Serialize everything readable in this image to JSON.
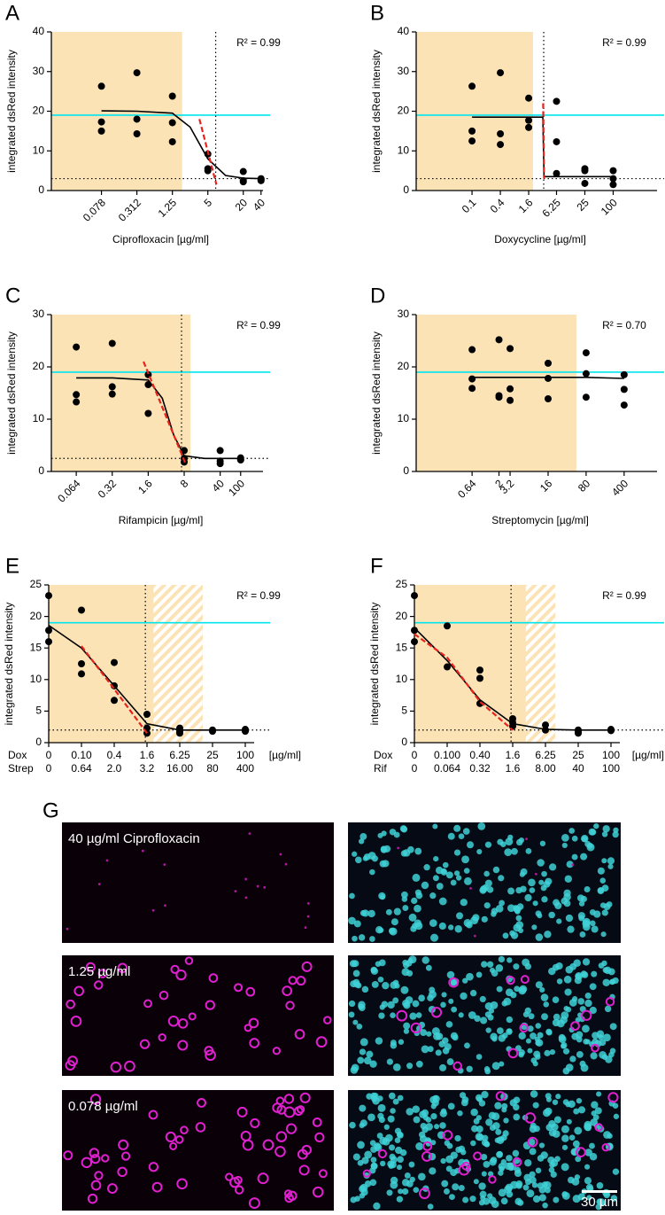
{
  "chart_data": [
    {
      "panel": "A",
      "type": "scatter",
      "annotation": "R² = 0.99",
      "ylabel": "integrated dsRed intensity",
      "xlabel": "Ciprofloxacin [µg/ml]",
      "xscale": "log",
      "xlim": [
        0.011,
        57
      ],
      "ylim": [
        0,
        40
      ],
      "yticks": [
        0,
        10,
        20,
        30,
        40
      ],
      "xticks": [
        0.078,
        0.312,
        1.25,
        5,
        20,
        40
      ],
      "shade_to": 1.83,
      "shade_color": "#fbe3b6",
      "vline": 6.8,
      "hlines": [
        {
          "y": 19,
          "color": "#00e5ee",
          "style": "solid"
        },
        {
          "y": 3,
          "color": "#000000",
          "style": "dotted"
        }
      ],
      "series": [
        {
          "style": "points",
          "color": "#000000",
          "x": [
            0.078,
            0.078,
            0.078,
            0.312,
            0.312,
            0.312,
            1.25,
            1.25,
            1.25,
            5,
            5,
            5,
            20,
            20,
            20,
            40,
            40,
            40
          ],
          "values": [
            26.3,
            17.3,
            15,
            29.7,
            18,
            14.3,
            23.8,
            17.1,
            12.3,
            9.2,
            5.5,
            5,
            4.8,
            2.5,
            2.2,
            3,
            2.8,
            2.5
          ]
        },
        {
          "style": "solid",
          "color": "#000000",
          "x": [
            0.078,
            0.312,
            1.25,
            2.5,
            5,
            10,
            20,
            40
          ],
          "values": [
            20.1,
            20,
            19.5,
            16,
            8,
            3.8,
            3.1,
            3
          ]
        },
        {
          "style": "dashed",
          "color": "#e8221c",
          "x": [
            3.6,
            7
          ],
          "values": [
            18,
            1.5
          ]
        }
      ]
    },
    {
      "panel": "B",
      "type": "scatter",
      "annotation": "R² = 0.99",
      "ylabel": "integrated dsRed intensity",
      "xlabel": "Doxycycline [µg/ml]",
      "xscale": "log",
      "xlim": [
        0.0065,
        1210
      ],
      "ylim": [
        0,
        40
      ],
      "yticks": [
        0,
        10,
        20,
        30,
        40
      ],
      "xticks": [
        0.1,
        0.4,
        1.6,
        6.25,
        25,
        100
      ],
      "shade_to": 1.98,
      "shade_color": "#fbe3b6",
      "vline": 3.34,
      "hlines": [
        {
          "y": 19,
          "color": "#00e5ee",
          "style": "solid"
        },
        {
          "y": 3,
          "color": "#000000",
          "style": "dotted"
        }
      ],
      "series": [
        {
          "style": "points",
          "color": "#000000",
          "x": [
            0.1,
            0.1,
            0.1,
            0.4,
            0.4,
            0.4,
            1.6,
            1.6,
            1.6,
            6.25,
            6.25,
            6.25,
            25,
            25,
            25,
            100,
            100,
            100
          ],
          "values": [
            26.3,
            15,
            12.5,
            29.7,
            14.3,
            11.6,
            23.3,
            17.7,
            15.9,
            22.5,
            12.3,
            4.3,
            5.5,
            5,
            1.8,
            5,
            3,
            1.5
          ]
        },
        {
          "style": "solid",
          "color": "#000000",
          "x": [
            0.1,
            3.2,
            3.4,
            100
          ],
          "values": [
            18.5,
            18.5,
            3.5,
            3.5
          ]
        },
        {
          "style": "dashed",
          "color": "#e8221c",
          "x": [
            3.25,
            3.4
          ],
          "values": [
            22,
            3
          ]
        }
      ]
    },
    {
      "panel": "C",
      "type": "scatter",
      "annotation": "R² = 0.99",
      "ylabel": "integrated dsRed intensity",
      "xlabel": "Rifampicin [µg/ml]",
      "xscale": "log",
      "xlim": [
        0.021,
        373
      ],
      "ylim": [
        0,
        30
      ],
      "yticks": [
        0,
        10,
        20,
        30
      ],
      "xticks": [
        0.064,
        0.32,
        1.6,
        8,
        40,
        100
      ],
      "shade_to": 10.6,
      "shade_color": "#fbe3b6",
      "vline": 7.1,
      "hlines": [
        {
          "y": 19,
          "color": "#00e5ee",
          "style": "solid"
        },
        {
          "y": 2.5,
          "color": "#000000",
          "style": "dotted"
        }
      ],
      "series": [
        {
          "style": "points",
          "color": "#000000",
          "x": [
            0.064,
            0.064,
            0.064,
            0.32,
            0.32,
            0.32,
            1.6,
            1.6,
            1.6,
            8,
            8,
            8,
            40,
            40,
            40,
            100,
            100,
            100
          ],
          "values": [
            23.8,
            14.7,
            13.3,
            24.5,
            16.2,
            14.8,
            18.5,
            16.6,
            11.1,
            4,
            2.5,
            1.8,
            4,
            2,
            1.5,
            2.6,
            2.3,
            2.2
          ]
        },
        {
          "style": "solid",
          "color": "#000000",
          "x": [
            0.064,
            0.32,
            1.6,
            3,
            5,
            8,
            20,
            100
          ],
          "values": [
            17.9,
            17.9,
            17.5,
            14,
            7,
            3,
            2.5,
            2.5
          ]
        },
        {
          "style": "dashed",
          "color": "#e8221c",
          "x": [
            1.3,
            8.5
          ],
          "values": [
            21,
            1.5
          ]
        }
      ]
    },
    {
      "panel": "D",
      "type": "scatter",
      "annotation": "R² = 0.70",
      "ylabel": "integrated dsRed intensity",
      "xlabel": "Streptomycin [µg/ml]",
      "xscale": "log",
      "xlim": [
        0.06,
        2175
      ],
      "ylim": [
        0,
        30
      ],
      "yticks": [
        0,
        10,
        20,
        30
      ],
      "xticks": [
        0.64,
        2,
        3.2,
        16,
        80,
        400
      ],
      "shade_to": 53,
      "shade_color": "#fbe3b6",
      "hlines": [
        {
          "y": 19,
          "color": "#00e5ee",
          "style": "solid"
        }
      ],
      "series": [
        {
          "style": "points",
          "color": "#000000",
          "x": [
            0.64,
            0.64,
            0.64,
            2,
            2,
            2,
            3.2,
            3.2,
            3.2,
            16,
            16,
            16,
            80,
            80,
            80,
            400,
            400,
            400
          ],
          "values": [
            23.3,
            17.7,
            15.9,
            25.2,
            14.5,
            14.2,
            23.5,
            15.8,
            13.6,
            20.7,
            17.8,
            13.9,
            22.7,
            18.7,
            14.2,
            18.5,
            15.7,
            12.7
          ]
        },
        {
          "style": "solid",
          "color": "#000000",
          "x": [
            0.64,
            80,
            400
          ],
          "values": [
            18,
            18,
            17.8
          ]
        }
      ]
    },
    {
      "panel": "E",
      "type": "scatter",
      "annotation": "R² = 0.99",
      "ylabel": "integrated dsRed intensity",
      "xlabel": "[µg/ml]",
      "xrow_labels": [
        "Dox",
        "Strep"
      ],
      "categories": [
        "0",
        "0.10",
        "0.4",
        "1.6",
        "6.25",
        "25",
        "100"
      ],
      "categories_2": [
        "0",
        "0.64",
        "2.0",
        "3.2",
        "16.00",
        "80",
        "400"
      ],
      "ylim": [
        0,
        25
      ],
      "yticks": [
        0,
        5,
        10,
        15,
        20,
        25
      ],
      "shade_to": 4.7,
      "hatch": [
        3.2,
        4.7
      ],
      "shade_color": "#fbe3b6",
      "vline": 2.95,
      "hlines": [
        {
          "y": 19,
          "color": "#00e5ee",
          "style": "solid"
        },
        {
          "y": 2,
          "color": "#000000",
          "style": "dotted"
        }
      ],
      "series": [
        {
          "style": "points",
          "color": "#000000",
          "values": [
            23.3,
            21,
            12.7,
            4.5,
            2.3,
            2,
            2.1
          ]
        },
        {
          "style": "points",
          "color": "#000000",
          "values": [
            17.8,
            12.5,
            9,
            2.3,
            1.8,
            1.9,
            1.9
          ]
        },
        {
          "style": "points",
          "color": "#000000",
          "values": [
            16,
            10.9,
            6.7,
            1.5,
            1.5,
            1.8,
            1.8
          ]
        },
        {
          "style": "solid",
          "color": "#000000",
          "values": [
            18.6,
            15,
            9,
            3,
            2,
            2,
            2
          ]
        },
        {
          "style": "dashed",
          "color": "#e8221c",
          "values": [
            null,
            15.3,
            8.5,
            1.5,
            null,
            null,
            null
          ]
        }
      ]
    },
    {
      "panel": "F",
      "type": "scatter",
      "annotation": "R² = 0.99",
      "ylabel": "integrated dsRed intensity",
      "xlabel": "[µg/ml]",
      "xrow_labels": [
        "Dox",
        "Rif"
      ],
      "categories": [
        "0",
        "0.100",
        "0.40",
        "1.6",
        "6.25",
        "25",
        "100"
      ],
      "categories_2": [
        "0",
        "0.064",
        "0.32",
        "1.6",
        "8.00",
        "40",
        "100"
      ],
      "ylim": [
        0,
        25
      ],
      "yticks": [
        0,
        5,
        10,
        15,
        20,
        25
      ],
      "shade_to": 4.3,
      "hatch": [
        3.4,
        4.3
      ],
      "shade_color": "#fbe3b6",
      "vline": 2.95,
      "hlines": [
        {
          "y": 19,
          "color": "#00e5ee",
          "style": "solid"
        },
        {
          "y": 2,
          "color": "#000000",
          "style": "dotted"
        }
      ],
      "series": [
        {
          "style": "points",
          "color": "#000000",
          "values": [
            23.3,
            18.5,
            11.5,
            3.8,
            2.8,
            2,
            2.1
          ]
        },
        {
          "style": "points",
          "color": "#000000",
          "values": [
            17.8,
            12,
            10.2,
            3.2,
            2,
            1.8,
            1.9
          ]
        },
        {
          "style": "points",
          "color": "#000000",
          "values": [
            16,
            null,
            6.2,
            2.6,
            null,
            1.5,
            null
          ]
        },
        {
          "style": "solid",
          "color": "#000000",
          "values": [
            18.2,
            13,
            6.8,
            3,
            2.1,
            2,
            2
          ]
        },
        {
          "style": "dashed",
          "color": "#e8221c",
          "values": [
            17.2,
            13.5,
            6.5,
            2,
            null,
            null,
            null
          ]
        }
      ]
    }
  ],
  "panel_g": {
    "label": "G",
    "images": [
      {
        "label": "40 µg/ml Ciprofloxacin"
      },
      {
        "label": "1.25 µg/ml"
      },
      {
        "label": "0.078 µg/ml"
      }
    ],
    "scale_bar": "30 µm"
  }
}
